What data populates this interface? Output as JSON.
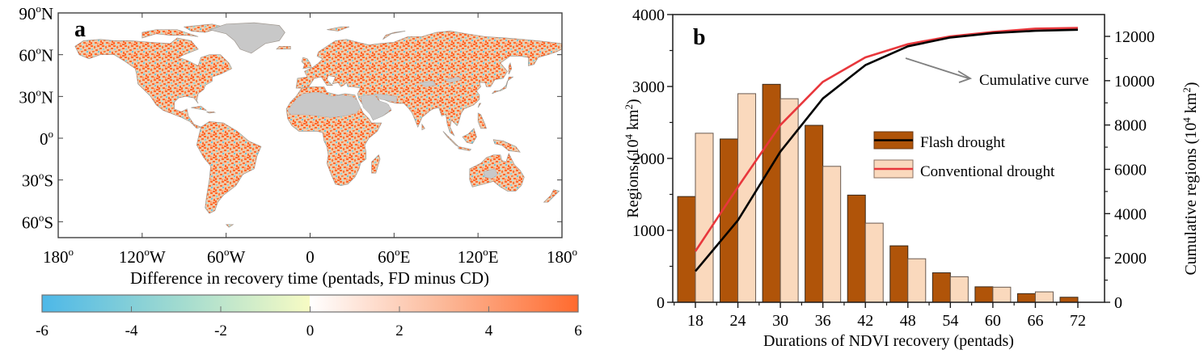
{
  "chart_data": [
    {
      "panel": "a",
      "type": "heatmap",
      "title": "",
      "panel_label": "a",
      "description": "Global map of difference in NDVI recovery time between flash drought and conventional drought",
      "lat_ticks": [
        "90°N",
        "60°N",
        "30°N",
        "0°",
        "30°S",
        "60°S"
      ],
      "lat_tick_parts": [
        {
          "num": "90",
          "hem": "N",
          "lat": 90
        },
        {
          "num": "60",
          "hem": "N",
          "lat": 60
        },
        {
          "num": "30",
          "hem": "N",
          "lat": 30
        },
        {
          "num": "0",
          "hem": "",
          "lat": 0
        },
        {
          "num": "30",
          "hem": "S",
          "lat": -30
        },
        {
          "num": "60",
          "hem": "S",
          "lat": -60
        }
      ],
      "lon_tick_parts": [
        {
          "num": "180",
          "hem": "",
          "deg": true,
          "lon": -180
        },
        {
          "num": "120",
          "hem": "W",
          "deg": true,
          "lon": -120
        },
        {
          "num": "60",
          "hem": "W",
          "deg": true,
          "lon": -60
        },
        {
          "num": "0",
          "hem": "",
          "deg": false,
          "lon": 0
        },
        {
          "num": "60",
          "hem": "E",
          "deg": true,
          "lon": 60
        },
        {
          "num": "120",
          "hem": "E",
          "deg": true,
          "lon": 120
        },
        {
          "num": "180",
          "hem": "",
          "deg": true,
          "lon": 180
        }
      ],
      "lon_range": [
        -180,
        180
      ],
      "lat_range": [
        -62,
        90
      ],
      "colorbar": {
        "label": "Difference in recovery time (pentads, FD minus CD)",
        "min": -6,
        "max": 6,
        "ticks": [
          "-6",
          "-4",
          "-2",
          "0",
          "2",
          "4",
          "6"
        ],
        "tick_values": [
          -6,
          -4,
          -2,
          0,
          2,
          4,
          6
        ],
        "stops": [
          {
            "value": -6,
            "color": "#4db8e8"
          },
          {
            "value": -3,
            "color": "#9fdad0"
          },
          {
            "value": 0,
            "color": "#f7fbc4",
            "side": "left"
          },
          {
            "value": 0,
            "color": "#ffffff",
            "side": "right"
          },
          {
            "value": 3,
            "color": "#fcb898"
          },
          {
            "value": 6,
            "color": "#ff6a2e"
          }
        ]
      },
      "masked_color": "#c8c8c8",
      "dominant_sign": "positive (FD recovers slower) across most land areas"
    },
    {
      "panel": "b",
      "type": "bar",
      "panel_label": "b",
      "title": "",
      "xlabel": "Durations of NDVI recovery (pentads)",
      "ylabel_left": "Regions (10^4 km^2)",
      "ylabel_right": "Cumulative regions (10^4 km^2)",
      "ylabel_left_parts": {
        "pre": "Regions (10",
        "sup1": "4",
        "mid": " km",
        "sup2": "2",
        "post": ")"
      },
      "ylabel_right_parts": {
        "pre": "Cumulative regions (10",
        "sup1": "4",
        "mid": " km",
        "sup2": "2",
        "post": ")"
      },
      "categories": [
        "18",
        "24",
        "30",
        "36",
        "42",
        "48",
        "54",
        "60",
        "66",
        "72"
      ],
      "ylim_left": [
        0,
        4000
      ],
      "ylim_right": [
        0,
        12800
      ],
      "yticks_left": [
        "0",
        "1000",
        "2000",
        "3000",
        "4000"
      ],
      "yticks_left_values": [
        0,
        1000,
        2000,
        3000,
        4000
      ],
      "yticks_right": [
        "0",
        "2000",
        "4000",
        "6000",
        "8000",
        "10000",
        "12000"
      ],
      "yticks_right_values": [
        0,
        2000,
        4000,
        6000,
        8000,
        10000,
        12000
      ],
      "series": [
        {
          "name": "Flash drought",
          "kind": "bar",
          "axis": "left",
          "color": "#b05409",
          "values": [
            1470,
            2270,
            3030,
            2460,
            1490,
            785,
            410,
            215,
            120,
            70
          ]
        },
        {
          "name": "Conventional drought",
          "kind": "bar",
          "axis": "left",
          "color": "#fad9bd",
          "values": [
            2350,
            2900,
            2830,
            1890,
            1100,
            605,
            355,
            210,
            145,
            0
          ]
        },
        {
          "name": "Flash drought cumulative",
          "kind": "line",
          "axis": "right",
          "color": "#000000",
          "values": [
            1400,
            3700,
            6800,
            9200,
            10700,
            11550,
            11950,
            12150,
            12250,
            12300
          ]
        },
        {
          "name": "Conventional drought cumulative",
          "kind": "line",
          "axis": "right",
          "color": "#e8373c",
          "values": [
            2300,
            5200,
            8000,
            9950,
            11050,
            11650,
            12000,
            12200,
            12350,
            12380
          ]
        }
      ],
      "legend": {
        "placement": "center-right",
        "entries": [
          {
            "label": "Flash drought",
            "fill": "#b05409",
            "line": "#000000"
          },
          {
            "label": "Conventional drought",
            "fill": "#fad9bd",
            "line": "#e8373c"
          }
        ]
      },
      "annotations": [
        {
          "text": "Cumulative curve",
          "arrow": true
        }
      ],
      "grid": false
    }
  ]
}
